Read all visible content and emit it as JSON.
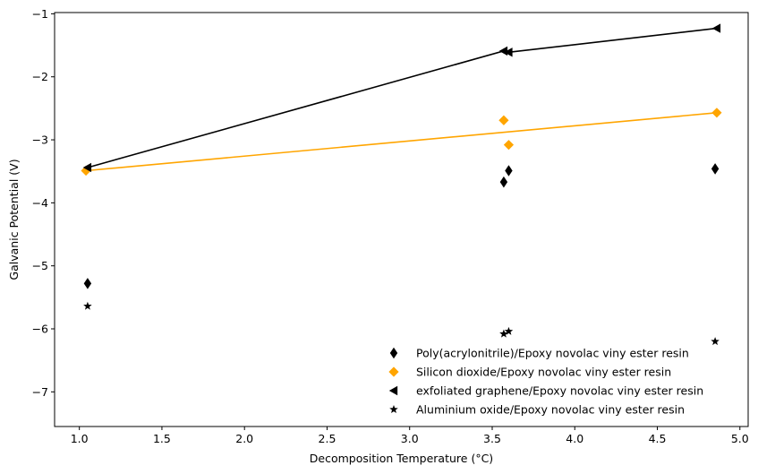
{
  "chart_data": {
    "type": "scatter",
    "xlabel": "Decomposition Temperature (°C)",
    "ylabel": "Galvanic Potential (V)",
    "xlim": [
      0.85,
      5.05
    ],
    "ylim": [
      -7.55,
      -0.98
    ],
    "xticks": [
      1.0,
      1.5,
      2.0,
      2.5,
      3.0,
      3.5,
      4.0,
      4.5,
      5.0
    ],
    "xtick_labels": [
      "1.0",
      "1.5",
      "2.0",
      "2.5",
      "3.0",
      "3.5",
      "4.0",
      "4.5",
      "5.0"
    ],
    "yticks": [
      -7,
      -6,
      -5,
      -4,
      -3,
      -2,
      -1
    ],
    "ytick_labels": [
      "−7",
      "−6",
      "−5",
      "−4",
      "−3",
      "−2",
      "−1"
    ],
    "legend_position": "lower-right",
    "series": [
      {
        "name": "Poly(acrylonitrile)/Epoxy novolac viny ester resin",
        "marker": "thin-diamond",
        "color": "#000000",
        "points": [
          [
            1.05,
            -5.28
          ],
          [
            3.57,
            -3.67
          ],
          [
            3.6,
            -3.49
          ],
          [
            4.85,
            -3.46
          ]
        ],
        "line": null
      },
      {
        "name": "Silicon dioxide/Epoxy novolac viny ester resin",
        "marker": "diamond",
        "color": "#FFA500",
        "points": [
          [
            1.04,
            -3.49
          ],
          [
            3.57,
            -2.69
          ],
          [
            3.6,
            -3.08
          ],
          [
            4.86,
            -2.57
          ]
        ],
        "line": {
          "type": "fit",
          "from": [
            1.04,
            -3.49
          ],
          "to": [
            4.86,
            -2.57
          ]
        }
      },
      {
        "name": "exfoliated graphene/Epoxy novolac viny ester resin",
        "marker": "triangle-left",
        "color": "#000000",
        "points": [
          [
            1.05,
            -3.44
          ],
          [
            3.57,
            -1.59
          ],
          [
            3.6,
            -1.61
          ],
          [
            4.86,
            -1.23
          ]
        ],
        "line": {
          "type": "path",
          "points": [
            [
              4.86,
              -1.23
            ],
            [
              3.6,
              -1.61
            ],
            [
              3.57,
              -1.59
            ],
            [
              1.05,
              -3.44
            ]
          ]
        }
      },
      {
        "name": "Aluminium oxide/Epoxy novolac viny ester resin",
        "marker": "star",
        "color": "#000000",
        "points": [
          [
            1.05,
            -5.64
          ],
          [
            3.57,
            -6.08
          ],
          [
            3.6,
            -6.04
          ],
          [
            4.85,
            -6.2
          ]
        ],
        "line": null
      }
    ]
  }
}
